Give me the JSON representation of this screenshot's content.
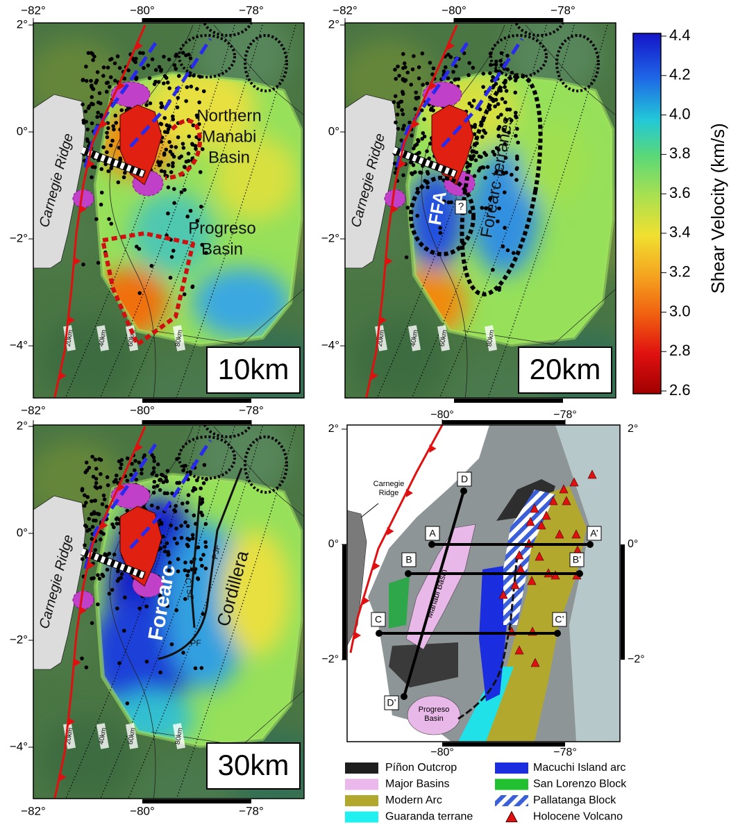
{
  "colorbar": {
    "label": "Shear Velocity (km/s)",
    "lim": [
      2.6,
      4.4
    ],
    "ticks": [
      4.4,
      4.2,
      {
        "value": 4.0,
        "label": "4.0"
      },
      3.8,
      3.6,
      3.4,
      3.2,
      {
        "value": 3.0,
        "label": "3.0"
      },
      2.8,
      2.6
    ]
  },
  "lon_ticks": [
    {
      "value": -82,
      "label": "−82°"
    },
    {
      "value": -80,
      "label": "−80°"
    },
    {
      "value": -78,
      "label": "−78°"
    }
  ],
  "lat_ticks": [
    {
      "value": 2,
      "label": "2°"
    },
    {
      "value": 0,
      "label": "0°"
    },
    {
      "value": -2,
      "label": "−2°"
    },
    {
      "value": -4,
      "label": "−4°"
    }
  ],
  "contour_labels": [
    "20km",
    "40km",
    "60km",
    "80km"
  ],
  "panels": [
    {
      "depth": "10km",
      "ridge": "Carnegie Ridge",
      "labels": [
        [
          "Northern",
          "Manabi",
          "Basin"
        ],
        [
          "Progreso",
          "Basin"
        ]
      ]
    },
    {
      "depth": "20km",
      "ridge": "Carnegie Ridge",
      "labels": [
        [
          "FFA"
        ],
        [
          "Forearc terranes"
        ],
        [
          "?"
        ]
      ]
    },
    {
      "depth": "30km",
      "ridge": "Carnegie Ridge",
      "labels": [
        [
          "Forearc"
        ],
        [
          "Cordillera"
        ],
        [
          "CTSZ"
        ],
        [
          "PJF"
        ],
        [
          "PF"
        ]
      ]
    }
  ],
  "tectonic_map": {
    "ridge": [
      "Carnegie",
      "Ridge"
    ],
    "basins": [
      [
        "Manabi Basin"
      ],
      [
        "Progreso",
        "Basin"
      ]
    ],
    "sections": [
      "A",
      "A’",
      "B",
      "B’",
      "C",
      "C’",
      "D",
      "D’"
    ]
  },
  "legend": [
    "Píñon Outcrop",
    "Major Basins",
    "Modern Arc",
    "Guaranda terrane",
    "Macuchi Island arc",
    "San Lorenzo Block",
    "Pallatanga Block",
    "Holocene Volcano"
  ]
}
